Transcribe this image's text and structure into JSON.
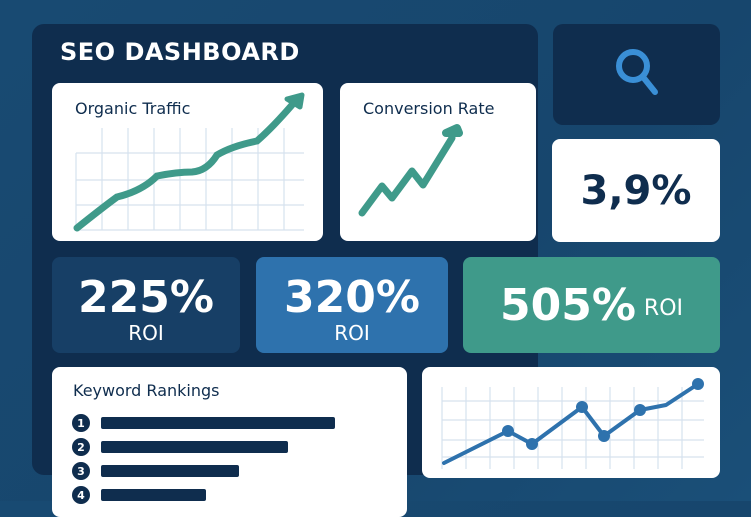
{
  "header": {
    "title": "SEO DASHBOARD"
  },
  "search": {
    "icon": "search-icon",
    "color": "#3a8fd6"
  },
  "stat": {
    "value": "3,9%"
  },
  "organic": {
    "title": "Organic Traffic"
  },
  "conversion": {
    "title": "Conversion Rate"
  },
  "roi": [
    {
      "value": "225%",
      "label": "ROI",
      "color": "#173f66"
    },
    {
      "value": "320%",
      "label": "ROI",
      "color": "#2e72ad"
    },
    {
      "value": "505%",
      "label": "ROI",
      "color": "#3f9a8a"
    }
  ],
  "keywords": {
    "title": "Keyword Rankings",
    "items": [
      {
        "rank": "1",
        "fill": 1.0
      },
      {
        "rank": "2",
        "fill": 0.8
      },
      {
        "rank": "3",
        "fill": 0.59
      },
      {
        "rank": "4",
        "fill": 0.45
      }
    ]
  },
  "colors": {
    "navy": "#0f2d4e",
    "teal": "#3f9a8a",
    "blue": "#2e72ad"
  }
}
